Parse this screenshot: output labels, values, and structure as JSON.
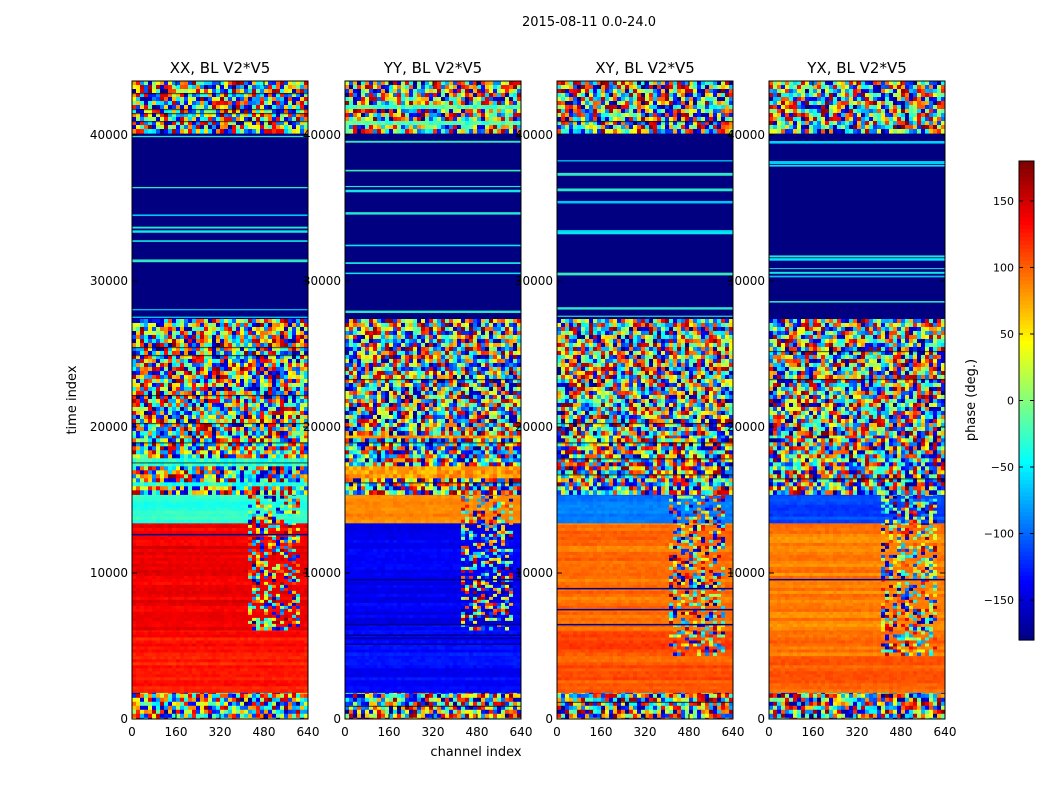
{
  "chart_data": {
    "type": "heatmap",
    "suptitle": "2015-08-11 0.0-24.0",
    "xlabel": "channel index",
    "ylabel": "time index",
    "colorbar_label": "phase (deg.)",
    "colorbar_ticks": [
      150,
      100,
      50,
      0,
      -50,
      -100,
      -150
    ],
    "colorbar_range": [
      -180,
      180
    ],
    "colormap": "jet",
    "x_ticks": [
      0,
      160,
      320,
      480,
      640
    ],
    "y_ticks": [
      0,
      10000,
      20000,
      30000,
      40000
    ],
    "xlim": [
      0,
      640
    ],
    "ylim": [
      0,
      43700
    ],
    "panels": [
      {
        "title": "XX, BL V2*V5",
        "segments": [
          {
            "y0": 0,
            "y1": 2000,
            "kind": "noise"
          },
          {
            "y0": 2000,
            "y1": 4500,
            "kind": "smooth",
            "value": 125,
            "rfi_from": 999
          },
          {
            "y0": 4500,
            "y1": 6200,
            "kind": "smooth",
            "value": 130,
            "rfi_from": 999,
            "stripes": true
          },
          {
            "y0": 6200,
            "y1": 13500,
            "kind": "smooth",
            "value": 140,
            "rfi_from": 410,
            "stripes": true
          },
          {
            "y0": 13500,
            "y1": 15500,
            "kind": "smooth",
            "value": -30,
            "rfi_from": 410
          },
          {
            "y0": 15500,
            "y1": 19500,
            "kind": "noise",
            "band": -30
          },
          {
            "y0": 19500,
            "y1": 27400,
            "kind": "noise"
          },
          {
            "y0": 27400,
            "y1": 40200,
            "kind": "dark",
            "value": -180
          },
          {
            "y0": 40200,
            "y1": 43700,
            "kind": "noise"
          }
        ]
      },
      {
        "title": "YY, BL V2*V5",
        "segments": [
          {
            "y0": 0,
            "y1": 2000,
            "kind": "noise"
          },
          {
            "y0": 2000,
            "y1": 4500,
            "kind": "smooth",
            "value": -135,
            "rfi_from": 999
          },
          {
            "y0": 4500,
            "y1": 6200,
            "kind": "smooth",
            "value": -130,
            "rfi_from": 999,
            "stripes": true
          },
          {
            "y0": 6200,
            "y1": 13500,
            "kind": "smooth",
            "value": -140,
            "rfi_from": 410,
            "stripes": true
          },
          {
            "y0": 13500,
            "y1": 15500,
            "kind": "smooth",
            "value": 85,
            "rfi_from": 410
          },
          {
            "y0": 15500,
            "y1": 19500,
            "kind": "noise",
            "band": 80
          },
          {
            "y0": 19500,
            "y1": 27400,
            "kind": "noise"
          },
          {
            "y0": 27400,
            "y1": 40200,
            "kind": "dark",
            "value": -180
          },
          {
            "y0": 40200,
            "y1": 43700,
            "kind": "noise",
            "band": -20
          }
        ]
      },
      {
        "title": "XY, BL V2*V5",
        "segments": [
          {
            "y0": 0,
            "y1": 2000,
            "kind": "noise"
          },
          {
            "y0": 2000,
            "y1": 4500,
            "kind": "smooth",
            "value": 105,
            "rfi_from": 999
          },
          {
            "y0": 4500,
            "y1": 6200,
            "kind": "smooth",
            "value": 110,
            "rfi_from": 400,
            "stripes": true
          },
          {
            "y0": 6200,
            "y1": 13500,
            "kind": "smooth",
            "value": 95,
            "rfi_from": 400,
            "stripes": true
          },
          {
            "y0": 13500,
            "y1": 15500,
            "kind": "smooth",
            "value": -95,
            "rfi_from": 400
          },
          {
            "y0": 15500,
            "y1": 19500,
            "kind": "noise"
          },
          {
            "y0": 19500,
            "y1": 27400,
            "kind": "noise"
          },
          {
            "y0": 27400,
            "y1": 40200,
            "kind": "dark",
            "value": -180
          },
          {
            "y0": 40200,
            "y1": 43700,
            "kind": "noise"
          }
        ]
      },
      {
        "title": "YX, BL V2*V5",
        "segments": [
          {
            "y0": 0,
            "y1": 2000,
            "kind": "noise"
          },
          {
            "y0": 2000,
            "y1": 4500,
            "kind": "smooth",
            "value": 100,
            "rfi_from": 999
          },
          {
            "y0": 4500,
            "y1": 6200,
            "kind": "smooth",
            "value": 95,
            "rfi_from": 400,
            "stripes": true
          },
          {
            "y0": 6200,
            "y1": 13500,
            "kind": "smooth",
            "value": 90,
            "rfi_from": 400,
            "stripes": true
          },
          {
            "y0": 13500,
            "y1": 15500,
            "kind": "smooth",
            "value": -110,
            "rfi_from": 400
          },
          {
            "y0": 15500,
            "y1": 19500,
            "kind": "noise"
          },
          {
            "y0": 19500,
            "y1": 27400,
            "kind": "noise"
          },
          {
            "y0": 27400,
            "y1": 40200,
            "kind": "dark",
            "value": -180
          },
          {
            "y0": 40200,
            "y1": 43700,
            "kind": "noise"
          }
        ]
      }
    ]
  }
}
